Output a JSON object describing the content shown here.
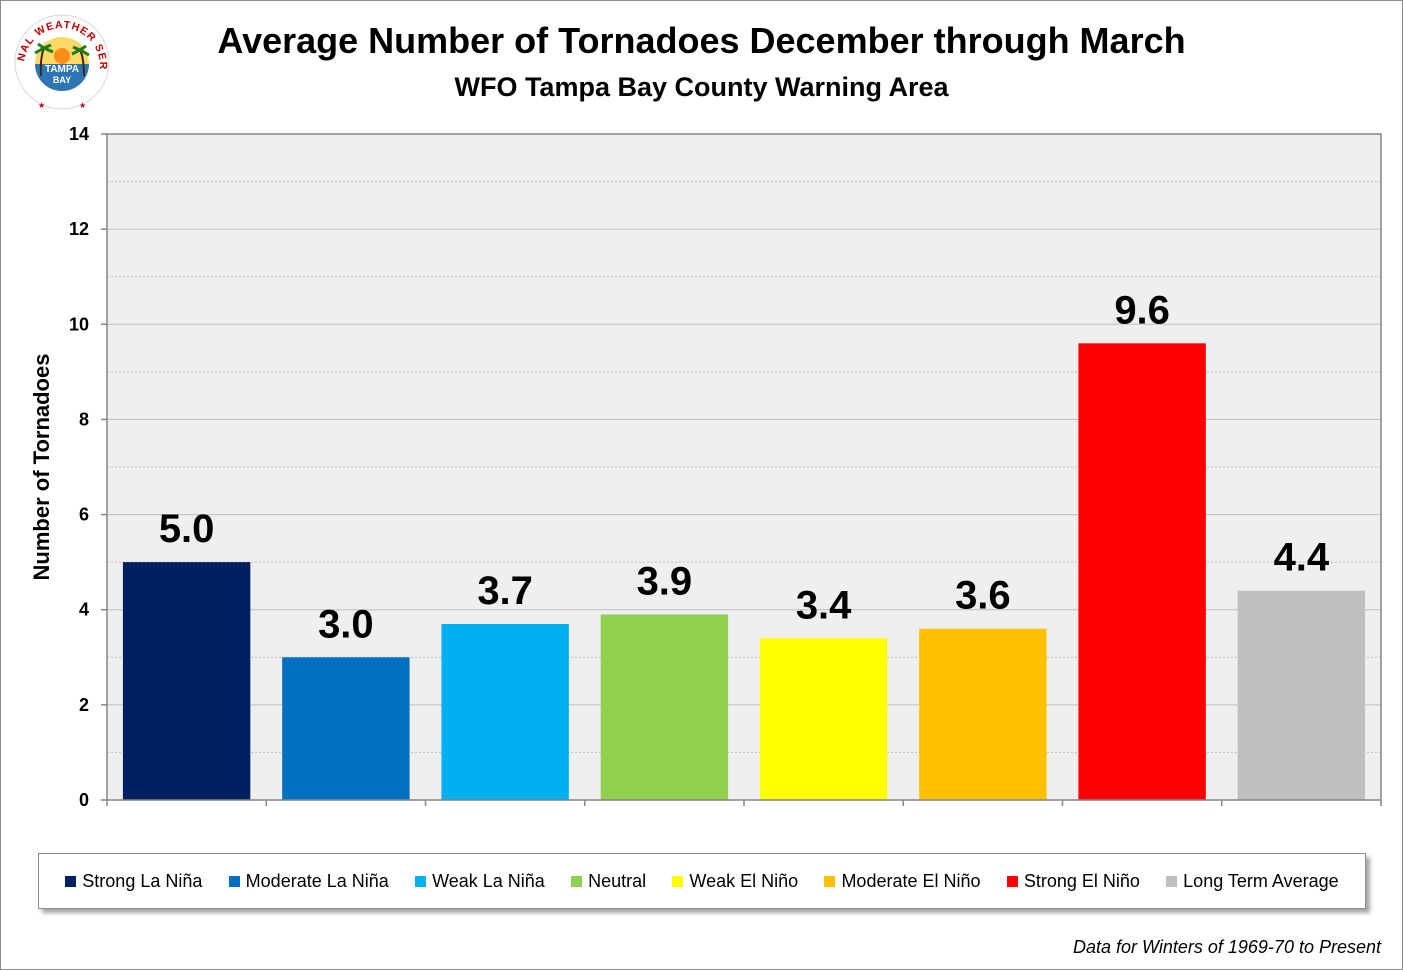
{
  "logo": {
    "text_top": "NATIONAL WEATHER SERVICE",
    "text_center_1": "TAMPA",
    "text_center_2": "BAY"
  },
  "footnote": "Data for Winters of 1969-70 to Present",
  "colors": {
    "plot_background": "#efefef",
    "gridline": "#bfbfbf"
  },
  "chart_data": {
    "type": "bar",
    "title": "Average Number of Tornadoes December through March",
    "subtitle": "WFO Tampa Bay County Warning Area",
    "xlabel": "",
    "ylabel": "Number of Tornadoes",
    "ylim": [
      0,
      14
    ],
    "yticks": [
      0,
      2,
      4,
      6,
      8,
      10,
      12,
      14
    ],
    "grid": "horizontal major and minor",
    "legend_position": "bottom",
    "categories": [
      "Strong La Niña",
      "Moderate La Niña",
      "Weak La Niña",
      "Neutral",
      "Weak El Niño",
      "Moderate El Niño",
      "Strong El Niño",
      "Long Term Average"
    ],
    "values": [
      5.0,
      3.0,
      3.7,
      3.9,
      3.4,
      3.6,
      9.6,
      4.4
    ],
    "value_labels": [
      "5.0",
      "3.0",
      "3.7",
      "3.9",
      "3.4",
      "3.6",
      "9.6",
      "4.4"
    ],
    "colors": [
      "#002060",
      "#0070c0",
      "#00b0f0",
      "#92d050",
      "#ffff00",
      "#ffc000",
      "#ff0000",
      "#bfbfbf"
    ]
  }
}
